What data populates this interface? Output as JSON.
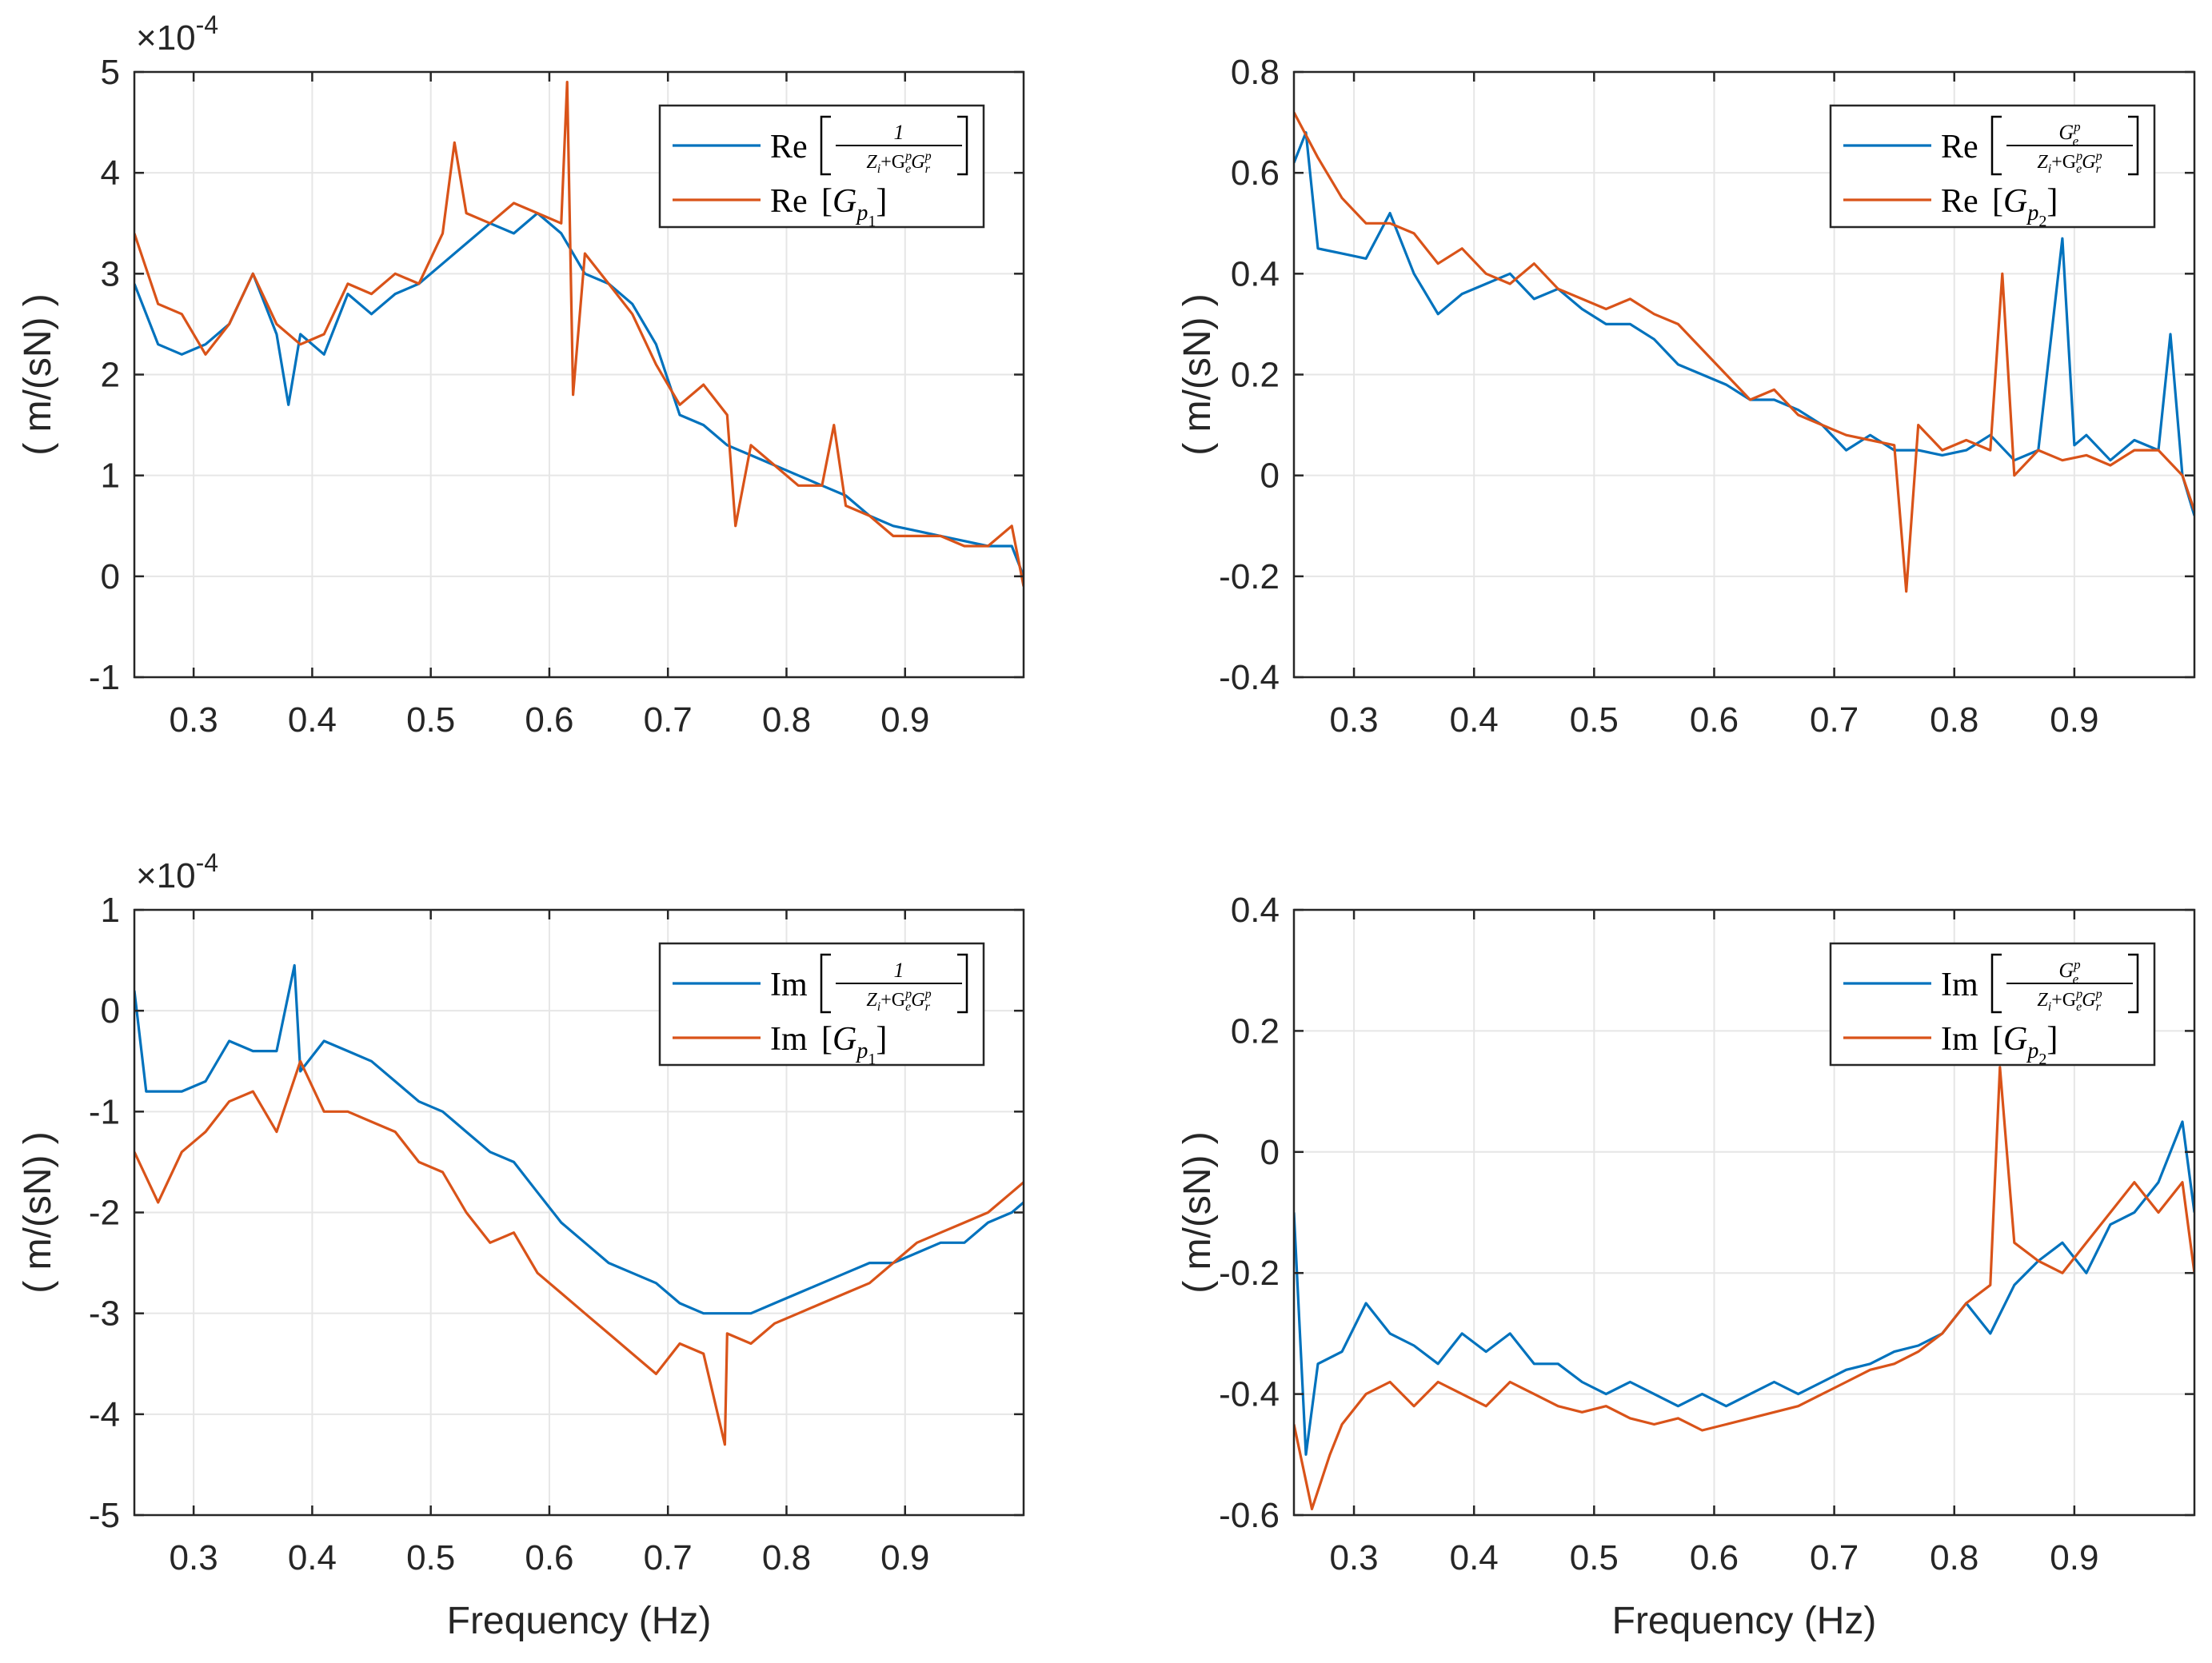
{
  "figure": {
    "colors": {
      "blue": "#0072BD",
      "orange": "#D95319",
      "grid": "#e6e6e6",
      "axes": "#262626"
    }
  },
  "chart_data": [
    {
      "id": "re1",
      "type": "line",
      "xlabel": "",
      "ylabel": "( m/(sN) )",
      "xlim": [
        0.25,
        1.0
      ],
      "ylim": [
        -1,
        5
      ],
      "xticks": [
        0.3,
        0.4,
        0.5,
        0.6,
        0.7,
        0.8,
        0.9
      ],
      "xtick_labels": [
        "0.3",
        "0.4",
        "0.5",
        "0.6",
        "0.7",
        "0.8",
        "0.9"
      ],
      "yticks": [
        -1,
        0,
        1,
        2,
        3,
        4,
        5
      ],
      "ytick_labels": [
        "-1",
        "0",
        "1",
        "2",
        "3",
        "4",
        "5"
      ],
      "exponent": {
        "base": "×10",
        "power": "-4"
      },
      "grid": true,
      "legend_position": "top-right",
      "series": [
        {
          "name": "Re[1/(Z_i+G_e^p G_r^p)]",
          "legend_prefix": "Re",
          "legend_numerator": "1",
          "color": "#0072BD",
          "x": [
            0.25,
            0.27,
            0.29,
            0.31,
            0.33,
            0.35,
            0.37,
            0.38,
            0.39,
            0.41,
            0.43,
            0.45,
            0.47,
            0.49,
            0.51,
            0.53,
            0.55,
            0.57,
            0.59,
            0.61,
            0.62,
            0.63,
            0.65,
            0.67,
            0.69,
            0.71,
            0.73,
            0.75,
            0.77,
            0.79,
            0.81,
            0.83,
            0.85,
            0.87,
            0.89,
            0.91,
            0.93,
            0.95,
            0.97,
            0.99,
            1.0
          ],
          "y": [
            2.9,
            2.3,
            2.2,
            2.3,
            2.5,
            3.0,
            2.4,
            1.7,
            2.4,
            2.2,
            2.8,
            2.6,
            2.8,
            2.9,
            3.1,
            3.3,
            3.5,
            3.4,
            3.6,
            3.4,
            3.2,
            3.0,
            2.9,
            2.7,
            2.3,
            1.6,
            1.5,
            1.3,
            1.2,
            1.1,
            1.0,
            0.9,
            0.8,
            0.6,
            0.5,
            0.45,
            0.4,
            0.35,
            0.3,
            0.3,
            0.0
          ]
        },
        {
          "name": "Re[G_p1]",
          "legend_prefix": "Re",
          "legend_sub": "1",
          "color": "#D95319",
          "x": [
            0.25,
            0.27,
            0.29,
            0.31,
            0.33,
            0.35,
            0.37,
            0.39,
            0.41,
            0.43,
            0.45,
            0.47,
            0.49,
            0.51,
            0.52,
            0.53,
            0.55,
            0.57,
            0.59,
            0.61,
            0.615,
            0.62,
            0.63,
            0.65,
            0.67,
            0.69,
            0.71,
            0.73,
            0.75,
            0.757,
            0.77,
            0.79,
            0.81,
            0.83,
            0.84,
            0.85,
            0.87,
            0.89,
            0.91,
            0.93,
            0.95,
            0.97,
            0.99,
            1.0
          ],
          "y": [
            3.4,
            2.7,
            2.6,
            2.2,
            2.5,
            3.0,
            2.5,
            2.3,
            2.4,
            2.9,
            2.8,
            3.0,
            2.9,
            3.4,
            4.3,
            3.6,
            3.5,
            3.7,
            3.6,
            3.5,
            4.9,
            1.8,
            3.2,
            2.9,
            2.6,
            2.1,
            1.7,
            1.9,
            1.6,
            0.5,
            1.3,
            1.1,
            0.9,
            0.9,
            1.5,
            0.7,
            0.6,
            0.4,
            0.4,
            0.4,
            0.3,
            0.3,
            0.5,
            -0.1
          ]
        }
      ]
    },
    {
      "id": "re2",
      "type": "line",
      "xlabel": "",
      "ylabel": "( m/(sN) )",
      "xlim": [
        0.25,
        1.0
      ],
      "ylim": [
        -0.4,
        0.8
      ],
      "xticks": [
        0.3,
        0.4,
        0.5,
        0.6,
        0.7,
        0.8,
        0.9
      ],
      "xtick_labels": [
        "0.3",
        "0.4",
        "0.5",
        "0.6",
        "0.7",
        "0.8",
        "0.9"
      ],
      "yticks": [
        -0.4,
        -0.2,
        0,
        0.2,
        0.4,
        0.6,
        0.8
      ],
      "ytick_labels": [
        "-0.4",
        "-0.2",
        "0",
        "0.2",
        "0.4",
        "0.6",
        "0.8"
      ],
      "grid": true,
      "legend_position": "top-right",
      "series": [
        {
          "name": "Re[G_e^p/(Z_i+G_e^p G_r^p)]",
          "legend_prefix": "Re",
          "legend_numerator": "G",
          "color": "#0072BD",
          "x": [
            0.25,
            0.26,
            0.27,
            0.29,
            0.31,
            0.33,
            0.35,
            0.37,
            0.39,
            0.41,
            0.43,
            0.45,
            0.47,
            0.49,
            0.51,
            0.53,
            0.55,
            0.57,
            0.59,
            0.61,
            0.63,
            0.65,
            0.67,
            0.69,
            0.71,
            0.73,
            0.75,
            0.77,
            0.79,
            0.81,
            0.83,
            0.85,
            0.87,
            0.89,
            0.9,
            0.91,
            0.93,
            0.95,
            0.97,
            0.98,
            0.99,
            1.0
          ],
          "y": [
            0.62,
            0.68,
            0.45,
            0.44,
            0.43,
            0.52,
            0.4,
            0.32,
            0.36,
            0.38,
            0.4,
            0.35,
            0.37,
            0.33,
            0.3,
            0.3,
            0.27,
            0.22,
            0.2,
            0.18,
            0.15,
            0.15,
            0.13,
            0.1,
            0.05,
            0.08,
            0.05,
            0.05,
            0.04,
            0.05,
            0.08,
            0.03,
            0.05,
            0.47,
            0.06,
            0.08,
            0.03,
            0.07,
            0.05,
            0.28,
            0.0,
            -0.08
          ]
        },
        {
          "name": "Re[G_p2]",
          "legend_prefix": "Re",
          "legend_sub": "2",
          "color": "#D95319",
          "x": [
            0.25,
            0.27,
            0.29,
            0.31,
            0.33,
            0.35,
            0.37,
            0.39,
            0.41,
            0.43,
            0.45,
            0.47,
            0.49,
            0.51,
            0.53,
            0.55,
            0.57,
            0.59,
            0.61,
            0.63,
            0.65,
            0.67,
            0.69,
            0.71,
            0.73,
            0.75,
            0.76,
            0.77,
            0.79,
            0.81,
            0.83,
            0.84,
            0.85,
            0.87,
            0.89,
            0.91,
            0.93,
            0.95,
            0.97,
            0.99,
            1.0
          ],
          "y": [
            0.72,
            0.63,
            0.55,
            0.5,
            0.5,
            0.48,
            0.42,
            0.45,
            0.4,
            0.38,
            0.42,
            0.37,
            0.35,
            0.33,
            0.35,
            0.32,
            0.3,
            0.25,
            0.2,
            0.15,
            0.17,
            0.12,
            0.1,
            0.08,
            0.07,
            0.06,
            -0.23,
            0.1,
            0.05,
            0.07,
            0.05,
            0.4,
            0.0,
            0.05,
            0.03,
            0.04,
            0.02,
            0.05,
            0.05,
            0.0,
            -0.07
          ]
        }
      ]
    },
    {
      "id": "im1",
      "type": "line",
      "xlabel": "Frequency (Hz)",
      "ylabel": "( m/(sN) )",
      "xlim": [
        0.25,
        1.0
      ],
      "ylim": [
        -5,
        1
      ],
      "xticks": [
        0.3,
        0.4,
        0.5,
        0.6,
        0.7,
        0.8,
        0.9
      ],
      "xtick_labels": [
        "0.3",
        "0.4",
        "0.5",
        "0.6",
        "0.7",
        "0.8",
        "0.9"
      ],
      "yticks": [
        -5,
        -4,
        -3,
        -2,
        -1,
        0,
        1
      ],
      "ytick_labels": [
        "-5",
        "-4",
        "-3",
        "-2",
        "-1",
        "0",
        "1"
      ],
      "exponent": {
        "base": "×10",
        "power": "-4"
      },
      "grid": true,
      "legend_position": "top-right",
      "series": [
        {
          "name": "Im[1/(Z_i+G_e^p G_r^p)]",
          "legend_prefix": "Im",
          "legend_numerator": "1",
          "color": "#0072BD",
          "x": [
            0.25,
            0.26,
            0.27,
            0.29,
            0.31,
            0.33,
            0.35,
            0.37,
            0.385,
            0.39,
            0.41,
            0.43,
            0.45,
            0.47,
            0.49,
            0.51,
            0.53,
            0.55,
            0.57,
            0.59,
            0.61,
            0.63,
            0.65,
            0.67,
            0.69,
            0.71,
            0.73,
            0.75,
            0.77,
            0.79,
            0.81,
            0.83,
            0.85,
            0.87,
            0.89,
            0.91,
            0.93,
            0.95,
            0.97,
            0.99,
            1.0
          ],
          "y": [
            0.2,
            -0.8,
            -0.8,
            -0.8,
            -0.7,
            -0.3,
            -0.4,
            -0.4,
            0.45,
            -0.6,
            -0.3,
            -0.4,
            -0.5,
            -0.7,
            -0.9,
            -1.0,
            -1.2,
            -1.4,
            -1.5,
            -1.8,
            -2.1,
            -2.3,
            -2.5,
            -2.6,
            -2.7,
            -2.9,
            -3.0,
            -3.0,
            -3.0,
            -2.9,
            -2.8,
            -2.7,
            -2.6,
            -2.5,
            -2.5,
            -2.4,
            -2.3,
            -2.3,
            -2.1,
            -2.0,
            -1.9
          ]
        },
        {
          "name": "Im[G_p1]",
          "legend_prefix": "Im",
          "legend_sub": "1",
          "color": "#D95319",
          "x": [
            0.25,
            0.27,
            0.29,
            0.31,
            0.33,
            0.35,
            0.37,
            0.39,
            0.41,
            0.43,
            0.45,
            0.47,
            0.49,
            0.51,
            0.53,
            0.55,
            0.57,
            0.59,
            0.61,
            0.63,
            0.65,
            0.67,
            0.69,
            0.71,
            0.73,
            0.748,
            0.75,
            0.77,
            0.79,
            0.81,
            0.83,
            0.85,
            0.87,
            0.89,
            0.91,
            0.93,
            0.95,
            0.97,
            0.99,
            1.0
          ],
          "y": [
            -1.4,
            -1.9,
            -1.4,
            -1.2,
            -0.9,
            -0.8,
            -1.2,
            -0.5,
            -1.0,
            -1.0,
            -1.1,
            -1.2,
            -1.5,
            -1.6,
            -2.0,
            -2.3,
            -2.2,
            -2.6,
            -2.8,
            -3.0,
            -3.2,
            -3.4,
            -3.6,
            -3.3,
            -3.4,
            -4.3,
            -3.2,
            -3.3,
            -3.1,
            -3.0,
            -2.9,
            -2.8,
            -2.7,
            -2.5,
            -2.3,
            -2.2,
            -2.1,
            -2.0,
            -1.8,
            -1.7
          ]
        }
      ]
    },
    {
      "id": "im2",
      "type": "line",
      "xlabel": "Frequency (Hz)",
      "ylabel": "( m/(sN) )",
      "xlim": [
        0.25,
        1.0
      ],
      "ylim": [
        -0.6,
        0.4
      ],
      "xticks": [
        0.3,
        0.4,
        0.5,
        0.6,
        0.7,
        0.8,
        0.9
      ],
      "xtick_labels": [
        "0.3",
        "0.4",
        "0.5",
        "0.6",
        "0.7",
        "0.8",
        "0.9"
      ],
      "yticks": [
        -0.6,
        -0.4,
        -0.2,
        0,
        0.2,
        0.4
      ],
      "ytick_labels": [
        "-0.6",
        "-0.4",
        "-0.2",
        "0",
        "0.2",
        "0.4"
      ],
      "grid": true,
      "legend_position": "top-right",
      "series": [
        {
          "name": "Im[G_e^p/(Z_i+G_e^p G_r^p)]",
          "legend_prefix": "Im",
          "legend_numerator": "G",
          "color": "#0072BD",
          "x": [
            0.25,
            0.26,
            0.27,
            0.29,
            0.31,
            0.33,
            0.35,
            0.37,
            0.39,
            0.41,
            0.43,
            0.45,
            0.47,
            0.49,
            0.51,
            0.53,
            0.55,
            0.57,
            0.59,
            0.61,
            0.63,
            0.65,
            0.67,
            0.69,
            0.71,
            0.73,
            0.75,
            0.77,
            0.79,
            0.81,
            0.83,
            0.85,
            0.87,
            0.89,
            0.91,
            0.93,
            0.95,
            0.97,
            0.99,
            1.0
          ],
          "y": [
            -0.1,
            -0.5,
            -0.35,
            -0.33,
            -0.25,
            -0.3,
            -0.32,
            -0.35,
            -0.3,
            -0.33,
            -0.3,
            -0.35,
            -0.35,
            -0.38,
            -0.4,
            -0.38,
            -0.4,
            -0.42,
            -0.4,
            -0.42,
            -0.4,
            -0.38,
            -0.4,
            -0.38,
            -0.36,
            -0.35,
            -0.33,
            -0.32,
            -0.3,
            -0.25,
            -0.3,
            -0.22,
            -0.18,
            -0.15,
            -0.2,
            -0.12,
            -0.1,
            -0.05,
            0.05,
            -0.1
          ]
        },
        {
          "name": "Im[G_p2]",
          "legend_prefix": "Im",
          "legend_sub": "2",
          "color": "#D95319",
          "x": [
            0.25,
            0.265,
            0.28,
            0.29,
            0.31,
            0.33,
            0.35,
            0.37,
            0.39,
            0.41,
            0.43,
            0.45,
            0.47,
            0.49,
            0.51,
            0.53,
            0.55,
            0.57,
            0.59,
            0.61,
            0.63,
            0.65,
            0.67,
            0.69,
            0.71,
            0.73,
            0.75,
            0.77,
            0.79,
            0.81,
            0.83,
            0.838,
            0.85,
            0.87,
            0.89,
            0.91,
            0.93,
            0.95,
            0.97,
            0.99,
            1.0
          ],
          "y": [
            -0.45,
            -0.59,
            -0.5,
            -0.45,
            -0.4,
            -0.38,
            -0.42,
            -0.38,
            -0.4,
            -0.42,
            -0.38,
            -0.4,
            -0.42,
            -0.43,
            -0.42,
            -0.44,
            -0.45,
            -0.44,
            -0.46,
            -0.45,
            -0.44,
            -0.43,
            -0.42,
            -0.4,
            -0.38,
            -0.36,
            -0.35,
            -0.33,
            -0.3,
            -0.25,
            -0.22,
            0.14,
            -0.15,
            -0.18,
            -0.2,
            -0.15,
            -0.1,
            -0.05,
            -0.1,
            -0.05,
            -0.2
          ]
        }
      ]
    }
  ]
}
